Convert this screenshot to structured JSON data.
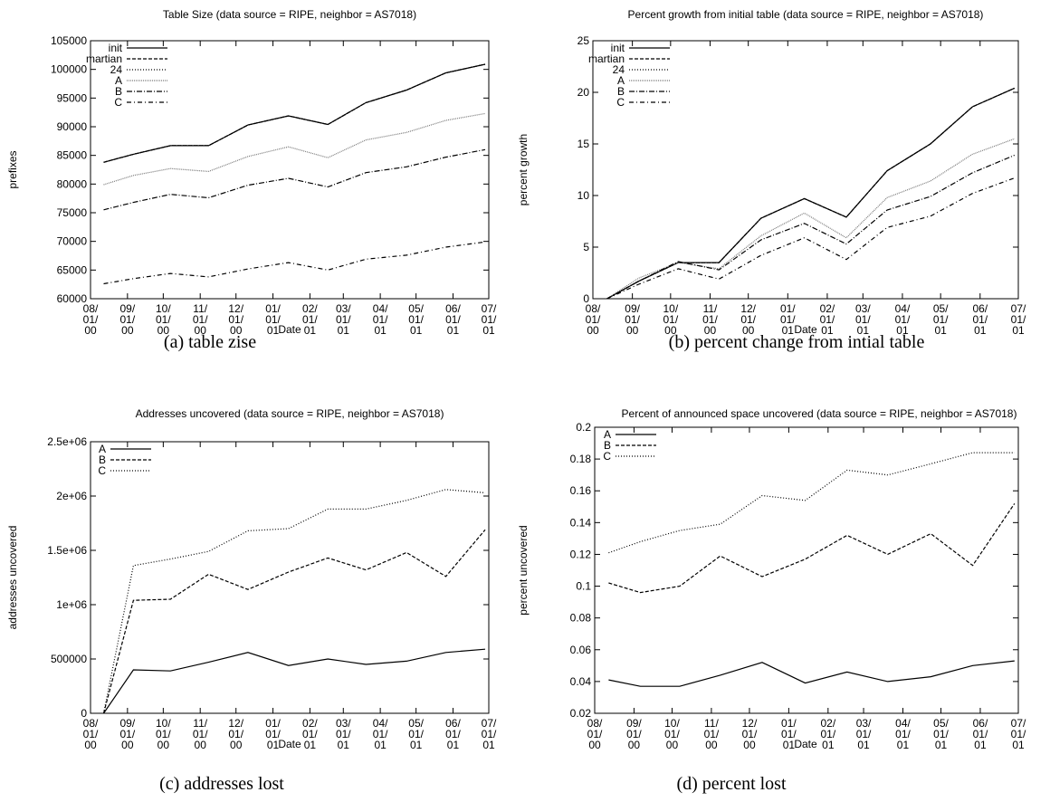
{
  "chart_data": [
    {
      "type": "line",
      "title": "Table Size (data source = RIPE, neighbor = AS7018)",
      "caption": "(a) table zise",
      "xlabel": "Date",
      "ylabel": "prefixes",
      "legend": "top-left",
      "x": [
        "2000-08-12",
        "2000-09-06",
        "2000-10-07",
        "2000-11-08",
        "2000-12-11",
        "2001-01-14",
        "2001-02-16",
        "2001-03-20",
        "2001-04-23",
        "2001-05-26",
        "2001-06-28"
      ],
      "xlim": [
        "2000-08-01",
        "2001-07-01"
      ],
      "xticks": [
        {
          "value": "2000-08-01",
          "label": "08/01/00"
        },
        {
          "value": "2000-09-01",
          "label": "09/01/00"
        },
        {
          "value": "2000-10-01",
          "label": "10/01/00"
        },
        {
          "value": "2000-11-01",
          "label": "11/01/00"
        },
        {
          "value": "2000-12-01",
          "label": "12/01/00"
        },
        {
          "value": "2001-01-01",
          "label": "01/01/01"
        },
        {
          "value": "2001-02-01",
          "label": "02/01/01"
        },
        {
          "value": "2001-03-01",
          "label": "03/01/01"
        },
        {
          "value": "2001-04-01",
          "label": "04/01/01"
        },
        {
          "value": "2001-05-01",
          "label": "05/01/01"
        },
        {
          "value": "2001-06-01",
          "label": "06/01/01"
        },
        {
          "value": "2001-07-01",
          "label": "07/01/01"
        }
      ],
      "ylim": [
        60000,
        105000
      ],
      "yticks": [
        60000,
        65000,
        70000,
        75000,
        80000,
        85000,
        90000,
        95000,
        100000,
        105000
      ],
      "series": [
        {
          "name": "init",
          "color": "#000000",
          "dash": "none",
          "values": [
            83800,
            85200,
            86700,
            86700,
            90300,
            91900,
            90400,
            94200,
            96400,
            99400,
            100900
          ]
        },
        {
          "name": "martian",
          "color": "#000000",
          "dash": "4,2",
          "values": [
            83800,
            85200,
            86700,
            86700,
            90300,
            91900,
            90400,
            94200,
            96400,
            99400,
            100900
          ]
        },
        {
          "name": "24",
          "color": "#000000",
          "dash": "1,2",
          "values": [
            83800,
            85200,
            86700,
            86700,
            90300,
            91900,
            90400,
            94200,
            96400,
            99400,
            100900
          ]
        },
        {
          "name": "A",
          "color": "#777777",
          "dash": "1,1",
          "values": [
            79900,
            81500,
            82700,
            82200,
            84800,
            86500,
            84600,
            87700,
            89000,
            91100,
            92300
          ]
        },
        {
          "name": "B",
          "color": "#000000",
          "dash": "6,2,1,2",
          "values": [
            75500,
            76800,
            78200,
            77600,
            79800,
            81000,
            79500,
            82000,
            83000,
            84700,
            86000
          ]
        },
        {
          "name": "C",
          "color": "#000000",
          "dash": "5,3,1,3",
          "values": [
            62600,
            63500,
            64400,
            63800,
            65200,
            66300,
            65000,
            66900,
            67600,
            69000,
            69900
          ]
        }
      ]
    },
    {
      "type": "line",
      "title": "Percent growth from initial table (data source = RIPE, neighbor = AS7018)",
      "caption": "(b) percent change from intial table",
      "xlabel": "Date",
      "ylabel": "percent growth",
      "legend": "top-left",
      "x": [
        "2000-08-12",
        "2000-09-06",
        "2000-10-07",
        "2000-11-08",
        "2000-12-11",
        "2001-01-14",
        "2001-02-16",
        "2001-03-20",
        "2001-04-23",
        "2001-05-26",
        "2001-06-28"
      ],
      "xlim": [
        "2000-08-01",
        "2001-07-01"
      ],
      "xticks": [
        {
          "value": "2000-08-01",
          "label": "08/01/00"
        },
        {
          "value": "2000-09-01",
          "label": "09/01/00"
        },
        {
          "value": "2000-10-01",
          "label": "10/01/00"
        },
        {
          "value": "2000-11-01",
          "label": "11/01/00"
        },
        {
          "value": "2000-12-01",
          "label": "12/01/00"
        },
        {
          "value": "2001-01-01",
          "label": "01/01/01"
        },
        {
          "value": "2001-02-01",
          "label": "02/01/01"
        },
        {
          "value": "2001-03-01",
          "label": "03/01/01"
        },
        {
          "value": "2001-04-01",
          "label": "04/01/01"
        },
        {
          "value": "2001-05-01",
          "label": "05/01/01"
        },
        {
          "value": "2001-06-01",
          "label": "06/01/01"
        },
        {
          "value": "2001-07-01",
          "label": "07/01/01"
        }
      ],
      "ylim": [
        0,
        25
      ],
      "yticks": [
        0,
        5,
        10,
        15,
        20,
        25
      ],
      "series": [
        {
          "name": "init",
          "color": "#000000",
          "dash": "none",
          "values": [
            0,
            1.7,
            3.5,
            3.5,
            7.8,
            9.7,
            7.9,
            12.4,
            15.0,
            18.6,
            20.4
          ]
        },
        {
          "name": "martian",
          "color": "#000000",
          "dash": "4,2",
          "values": [
            0,
            1.7,
            3.5,
            3.5,
            7.8,
            9.7,
            7.9,
            12.4,
            15.0,
            18.6,
            20.4
          ]
        },
        {
          "name": "24",
          "color": "#000000",
          "dash": "1,2",
          "values": [
            0,
            1.7,
            3.5,
            3.5,
            7.8,
            9.7,
            7.9,
            12.4,
            15.0,
            18.6,
            20.4
          ]
        },
        {
          "name": "A",
          "color": "#777777",
          "dash": "1,1",
          "values": [
            0,
            2.0,
            3.5,
            2.9,
            6.1,
            8.3,
            5.9,
            9.8,
            11.4,
            14.0,
            15.5
          ]
        },
        {
          "name": "B",
          "color": "#000000",
          "dash": "6,2,1,2",
          "values": [
            0,
            1.7,
            3.6,
            2.8,
            5.7,
            7.3,
            5.3,
            8.6,
            9.9,
            12.2,
            13.9
          ]
        },
        {
          "name": "C",
          "color": "#000000",
          "dash": "5,3,1,3",
          "values": [
            0,
            1.4,
            2.9,
            1.9,
            4.2,
            5.9,
            3.8,
            6.9,
            8.0,
            10.2,
            11.7
          ]
        }
      ]
    },
    {
      "type": "line",
      "title": "Addresses uncovered (data source = RIPE, neighbor = AS7018)",
      "caption": "(c) addresses lost",
      "xlabel": "Date",
      "ylabel": "addresses uncovered",
      "legend": "top-left",
      "x": [
        "2000-08-12",
        "2000-09-06",
        "2000-10-07",
        "2000-11-08",
        "2000-12-11",
        "2001-01-14",
        "2001-02-16",
        "2001-03-20",
        "2001-04-23",
        "2001-05-26",
        "2001-06-28"
      ],
      "xlim": [
        "2000-08-01",
        "2001-07-01"
      ],
      "xticks": [
        {
          "value": "2000-08-01",
          "label": "08/01/00"
        },
        {
          "value": "2000-09-01",
          "label": "09/01/00"
        },
        {
          "value": "2000-10-01",
          "label": "10/01/00"
        },
        {
          "value": "2000-11-01",
          "label": "11/01/00"
        },
        {
          "value": "2000-12-01",
          "label": "12/01/00"
        },
        {
          "value": "2001-01-01",
          "label": "01/01/01"
        },
        {
          "value": "2001-02-01",
          "label": "02/01/01"
        },
        {
          "value": "2001-03-01",
          "label": "03/01/01"
        },
        {
          "value": "2001-04-01",
          "label": "04/01/01"
        },
        {
          "value": "2001-05-01",
          "label": "05/01/01"
        },
        {
          "value": "2001-06-01",
          "label": "06/01/01"
        },
        {
          "value": "2001-07-01",
          "label": "07/01/01"
        }
      ],
      "ylim": [
        0,
        2500000
      ],
      "yticks": [
        0,
        500000,
        {
          "value": 1000000,
          "label": "1e+06"
        },
        {
          "value": 1500000,
          "label": "1.5e+06"
        },
        {
          "value": 2000000,
          "label": "2e+06"
        },
        {
          "value": 2500000,
          "label": "2.5e+06"
        }
      ],
      "series": [
        {
          "name": "A",
          "color": "#000000",
          "dash": "none",
          "values": [
            0,
            400000,
            390000,
            470000,
            560000,
            440000,
            500000,
            450000,
            480000,
            560000,
            590000
          ]
        },
        {
          "name": "B",
          "color": "#000000",
          "dash": "4,2",
          "values": [
            0,
            1040000,
            1050000,
            1280000,
            1140000,
            1300000,
            1430000,
            1320000,
            1480000,
            1260000,
            1690000
          ]
        },
        {
          "name": "C",
          "color": "#000000",
          "dash": "1,2",
          "values": [
            0,
            1360000,
            1420000,
            1490000,
            1680000,
            1700000,
            1880000,
            1880000,
            1960000,
            2060000,
            2030000
          ]
        }
      ]
    },
    {
      "type": "line",
      "title": "Percent of announced space uncovered (data source = RIPE, neighbor = AS7018)",
      "caption": "(d) percent lost",
      "xlabel": "Date",
      "ylabel": "percent uncovered",
      "legend": "top-left",
      "x": [
        "2000-08-12",
        "2000-09-06",
        "2000-10-07",
        "2000-11-08",
        "2000-12-11",
        "2001-01-14",
        "2001-02-16",
        "2001-03-20",
        "2001-04-23",
        "2001-05-26",
        "2001-06-28"
      ],
      "xlim": [
        "2000-08-01",
        "2001-07-01"
      ],
      "xticks": [
        {
          "value": "2000-08-01",
          "label": "08/01/00"
        },
        {
          "value": "2000-09-01",
          "label": "09/01/00"
        },
        {
          "value": "2000-10-01",
          "label": "10/01/00"
        },
        {
          "value": "2000-11-01",
          "label": "11/01/00"
        },
        {
          "value": "2000-12-01",
          "label": "12/01/00"
        },
        {
          "value": "2001-01-01",
          "label": "01/01/01"
        },
        {
          "value": "2001-02-01",
          "label": "02/01/01"
        },
        {
          "value": "2001-03-01",
          "label": "03/01/01"
        },
        {
          "value": "2001-04-01",
          "label": "04/01/01"
        },
        {
          "value": "2001-05-01",
          "label": "05/01/01"
        },
        {
          "value": "2001-06-01",
          "label": "06/01/01"
        },
        {
          "value": "2001-07-01",
          "label": "07/01/01"
        }
      ],
      "ylim": [
        0.02,
        0.2
      ],
      "yticks": [
        0.02,
        0.04,
        0.06,
        0.08,
        0.1,
        0.12,
        0.14,
        0.16,
        0.18,
        0.2
      ],
      "series": [
        {
          "name": "A",
          "color": "#000000",
          "dash": "none",
          "values": [
            0.041,
            0.037,
            0.037,
            0.044,
            0.052,
            0.039,
            0.046,
            0.04,
            0.043,
            0.05,
            0.053
          ]
        },
        {
          "name": "B",
          "color": "#000000",
          "dash": "4,2",
          "values": [
            0.102,
            0.096,
            0.1,
            0.119,
            0.106,
            0.117,
            0.132,
            0.12,
            0.133,
            0.113,
            0.152
          ]
        },
        {
          "name": "C",
          "color": "#000000",
          "dash": "1,2",
          "values": [
            0.121,
            0.128,
            0.135,
            0.139,
            0.157,
            0.154,
            0.173,
            0.17,
            0.177,
            0.184,
            0.184
          ]
        }
      ]
    }
  ]
}
